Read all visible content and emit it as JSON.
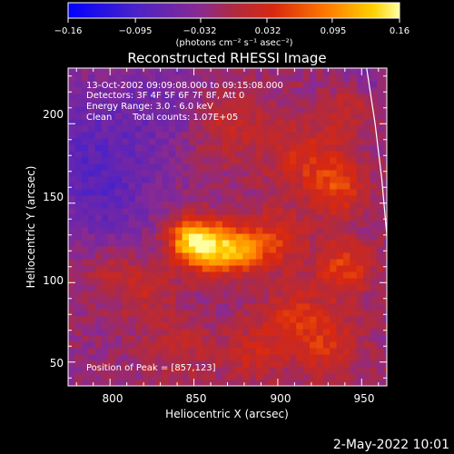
{
  "colorbar": {
    "tick_labels": [
      "−0.16",
      "−0.095",
      "−0.032",
      "0.032",
      "0.095",
      "0.16"
    ],
    "tick_values": [
      -0.16,
      -0.095,
      -0.032,
      0.032,
      0.095,
      0.16
    ],
    "range": [
      -0.16,
      0.16
    ],
    "unit_label": "(photons cm⁻² s⁻¹ asec⁻²)"
  },
  "chart_data": {
    "type": "heatmap",
    "title": "Reconstructed RHESSI Image",
    "xlabel": "Heliocentric X (arcsec)",
    "ylabel": "Heliocentric Y (arcsec)",
    "xlim": [
      775,
      965
    ],
    "ylim": [
      35,
      235
    ],
    "xticks": [
      800,
      850,
      900,
      950
    ],
    "yticks": [
      50,
      100,
      150,
      200
    ],
    "x_tick_labels": [
      "800",
      "850",
      "900",
      "950"
    ],
    "y_tick_labels": [
      "50",
      "100",
      "150",
      "200"
    ],
    "peak": [
      857,
      123
    ],
    "peak_value": 0.16,
    "annotations": {
      "time_range": "13-Oct-2002 09:09:08.000 to 09:15:08.000",
      "detectors": "Detectors: 3F 4F 5F 6F 7F 8F, Att 0",
      "energy": "Energy Range: 3.0 - 6.0 keV",
      "clean": "Clean",
      "total_counts": "Total counts: 1.07E+05",
      "peak_position": "Position of Peak = [857,123]"
    },
    "limb_curve": [
      [
        953,
        235
      ],
      [
        958,
        200
      ],
      [
        962,
        165
      ],
      [
        965,
        130
      ],
      [
        966,
        95
      ],
      [
        967,
        60
      ],
      [
        968,
        35
      ]
    ],
    "sources": [
      {
        "x": 857,
        "y": 123,
        "amp": 0.15,
        "sigma": 11
      },
      {
        "x": 878,
        "y": 121,
        "amp": 0.11,
        "sigma": 10
      },
      {
        "x": 845,
        "y": 128,
        "amp": 0.08,
        "sigma": 9
      },
      {
        "x": 900,
        "y": 128,
        "amp": 0.06,
        "sigma": 12
      },
      {
        "x": 935,
        "y": 160,
        "amp": 0.07,
        "sigma": 12
      },
      {
        "x": 940,
        "y": 110,
        "amp": 0.07,
        "sigma": 12
      },
      {
        "x": 915,
        "y": 180,
        "amp": 0.05,
        "sigma": 16
      },
      {
        "x": 910,
        "y": 80,
        "amp": 0.05,
        "sigma": 15
      },
      {
        "x": 885,
        "y": 55,
        "amp": 0.04,
        "sigma": 14
      },
      {
        "x": 930,
        "y": 60,
        "amp": 0.05,
        "sigma": 14
      },
      {
        "x": 870,
        "y": 200,
        "amp": 0.04,
        "sigma": 16
      },
      {
        "x": 820,
        "y": 95,
        "amp": 0.04,
        "sigma": 12
      },
      {
        "x": 800,
        "y": 110,
        "amp": 0.03,
        "sigma": 10
      },
      {
        "x": 840,
        "y": 60,
        "amp": 0.03,
        "sigma": 14
      },
      {
        "x": 945,
        "y": 210,
        "amp": 0.04,
        "sigma": 12
      }
    ],
    "background": [
      {
        "x": 790,
        "y": 185,
        "amp": -0.05,
        "sigma": 30
      },
      {
        "x": 795,
        "y": 150,
        "amp": -0.03,
        "sigma": 22
      },
      {
        "x": 835,
        "y": 215,
        "amp": -0.03,
        "sigma": 18
      },
      {
        "x": 960,
        "y": 230,
        "amp": -0.03,
        "sigma": 15
      }
    ]
  },
  "footer": {
    "timestamp": "2-May-2022 10:01"
  }
}
